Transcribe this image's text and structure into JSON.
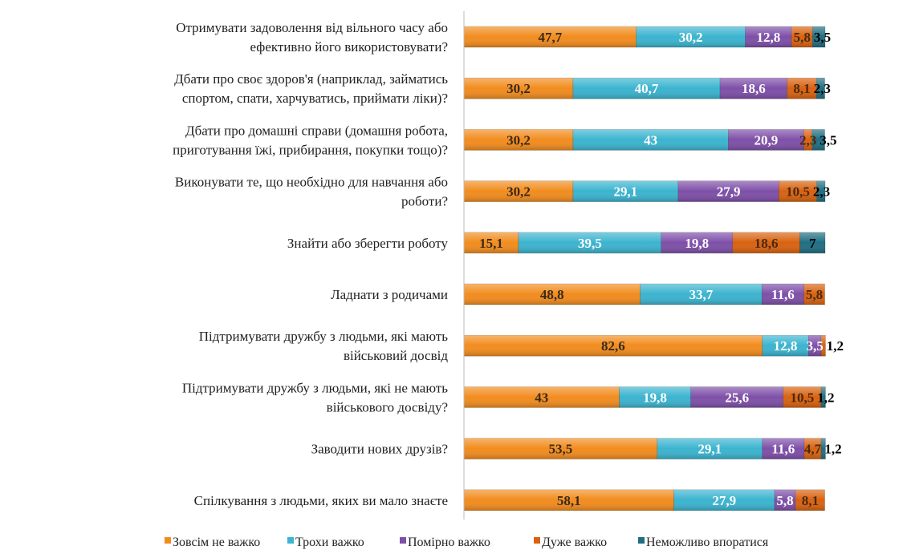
{
  "chart_data": {
    "type": "bar",
    "orientation": "horizontal",
    "stacked": true,
    "xlim": [
      0,
      100
    ],
    "grid": false,
    "legend_position": "bottom",
    "categories": [
      [
        "Отримувати задоволення від вільного часу або",
        "ефективно його використовувати?"
      ],
      [
        "Дбати про своє здоров'я (наприклад, займатись",
        "спортом, спати, харчуватись, приймати ліки)?"
      ],
      [
        "Дбати про домашні справи (домашня робота,",
        "приготування їжі, прибирання, покупки тощо)?"
      ],
      [
        "Виконувати те, що необхідно для навчання або",
        "роботи?"
      ],
      [
        "Знайти або зберегти роботу"
      ],
      [
        "Ладнати з родичами"
      ],
      [
        "Підтримувати дружбу з людьми, які мають",
        "військовий досвід"
      ],
      [
        "Підтримувати дружбу з людьми, які не мають",
        "військового досвіду?"
      ],
      [
        "Заводити нових друзів?"
      ],
      [
        "Спілкування з людьми, яких ви мало знаєте"
      ]
    ],
    "series": [
      {
        "name": "Зовсім не важко",
        "color": "#F28C1E",
        "values": [
          47.7,
          30.2,
          30.2,
          30.2,
          15.1,
          48.8,
          82.6,
          43,
          53.5,
          58.1
        ]
      },
      {
        "name": "Трохи важко",
        "color": "#3BB4CF",
        "values": [
          30.2,
          40.7,
          43,
          29.1,
          39.5,
          33.7,
          12.8,
          19.8,
          29.1,
          27.9
        ]
      },
      {
        "name": "Помірно важко",
        "color": "#7E4FA8",
        "values": [
          12.8,
          18.6,
          20.9,
          27.9,
          19.8,
          11.6,
          3.5,
          25.6,
          11.6,
          5.8
        ]
      },
      {
        "name": "Дуже важко",
        "color": "#D9620F",
        "values": [
          5.8,
          8.1,
          2.3,
          10.5,
          18.6,
          5.8,
          1.2,
          10.5,
          4.7,
          8.1
        ]
      },
      {
        "name": "Неможливо впоратися",
        "color": "#1F6E82",
        "values": [
          3.5,
          2.3,
          3.5,
          2.3,
          7,
          0,
          0,
          1.2,
          1.2,
          0
        ]
      }
    ]
  }
}
